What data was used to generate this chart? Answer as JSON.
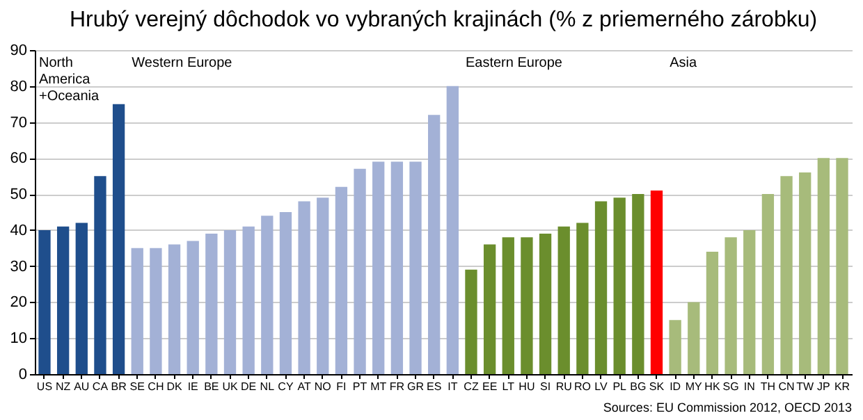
{
  "chart_data": {
    "type": "bar",
    "title": "Hrubý verejný dôchodok vo vybraných krajinách (% z priemerného zárobku)",
    "categories": [
      "US",
      "NZ",
      "AU",
      "CA",
      "BR",
      "SE",
      "CH",
      "DK",
      "IE",
      "BE",
      "UK",
      "DE",
      "NL",
      "CY",
      "AT",
      "NO",
      "FI",
      "PT",
      "MT",
      "FR",
      "GR",
      "ES",
      "IT",
      "CZ",
      "EE",
      "LT",
      "HU",
      "SI",
      "RU",
      "RO",
      "LV",
      "PL",
      "BG",
      "SK",
      "ID",
      "MY",
      "HK",
      "SG",
      "IN",
      "TH",
      "CN",
      "TW",
      "JP",
      "KR"
    ],
    "values": [
      40,
      41,
      42,
      55,
      75,
      35,
      35,
      36,
      37,
      39,
      40,
      41,
      44,
      45,
      48,
      49,
      52,
      57,
      59,
      59,
      59,
      72,
      80,
      29,
      36,
      38,
      38,
      39,
      41,
      42,
      48,
      49,
      50,
      51,
      15,
      20,
      34,
      38,
      40,
      50,
      55,
      56,
      60,
      60
    ],
    "colors": [
      "#1f4e8c",
      "#1f4e8c",
      "#1f4e8c",
      "#1f4e8c",
      "#1f4e8c",
      "#a3b1d6",
      "#a3b1d6",
      "#a3b1d6",
      "#a3b1d6",
      "#a3b1d6",
      "#a3b1d6",
      "#a3b1d6",
      "#a3b1d6",
      "#a3b1d6",
      "#a3b1d6",
      "#a3b1d6",
      "#a3b1d6",
      "#a3b1d6",
      "#a3b1d6",
      "#a3b1d6",
      "#a3b1d6",
      "#a3b1d6",
      "#a3b1d6",
      "#6b8e2d",
      "#6b8e2d",
      "#6b8e2d",
      "#6b8e2d",
      "#6b8e2d",
      "#6b8e2d",
      "#6b8e2d",
      "#6b8e2d",
      "#6b8e2d",
      "#6b8e2d",
      "#ff0000",
      "#a7bb7b",
      "#a7bb7b",
      "#a7bb7b",
      "#a7bb7b",
      "#a7bb7b",
      "#a7bb7b",
      "#a7bb7b",
      "#a7bb7b",
      "#a7bb7b",
      "#a7bb7b"
    ],
    "ylim": [
      0,
      90
    ],
    "yticks": [
      0,
      10,
      20,
      30,
      40,
      50,
      60,
      70,
      80,
      90
    ],
    "grid": "y",
    "annotations": [
      "North\nAmerica\n+Oceania",
      "Western Europe",
      "Eastern Europe",
      "Asia",
      "Sources: EU Commission 2012, OECD 2013"
    ]
  }
}
